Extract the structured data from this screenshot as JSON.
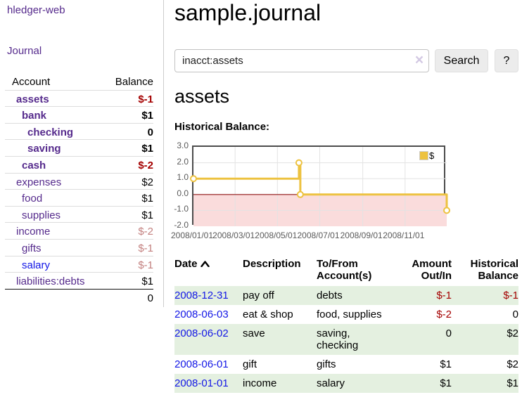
{
  "sidebar": {
    "app_title": "hledger-web",
    "journal_label": "Journal",
    "accounts_table": {
      "account_header": "Account",
      "balance_header": "Balance",
      "rows": [
        {
          "name": "assets",
          "balance": "$-1"
        },
        {
          "name": "bank",
          "balance": "$1"
        },
        {
          "name": "checking",
          "balance": "0"
        },
        {
          "name": "saving",
          "balance": "$1"
        },
        {
          "name": "cash",
          "balance": "$-2"
        },
        {
          "name": "expenses",
          "balance": "$2"
        },
        {
          "name": "food",
          "balance": "$1"
        },
        {
          "name": "supplies",
          "balance": "$1"
        },
        {
          "name": "income",
          "balance": "$-2"
        },
        {
          "name": "gifts",
          "balance": "$-1"
        },
        {
          "name": "salary",
          "balance": "$-1"
        },
        {
          "name": "liabilities:debts",
          "balance": "$1"
        }
      ],
      "total": "0"
    }
  },
  "main": {
    "page_title": "sample.journal",
    "search": {
      "value": "inacct:assets",
      "clear_icon": "×",
      "button_label": "Search",
      "help_label": "?"
    },
    "account_heading": "assets",
    "chart_title": "Historical Balance:"
  },
  "chart_data": {
    "type": "line",
    "step": true,
    "title": "Historical Balance",
    "series": [
      {
        "name": "$",
        "points": [
          {
            "date": "2008-01-01",
            "value": 1
          },
          {
            "date": "2008-06-01",
            "value": 2
          },
          {
            "date": "2008-06-03",
            "value": 0
          },
          {
            "date": "2008-12-31",
            "value": -1
          }
        ]
      }
    ],
    "xlim": [
      "2008-01-01",
      "2008-12-31"
    ],
    "ylim": [
      -2,
      3
    ],
    "x_ticks": [
      "2008/01/01",
      "2008/03/01",
      "2008/05/01",
      "2008/07/01",
      "2008/09/01",
      "2008/11/01"
    ],
    "y_ticks": [
      "3.0",
      "2.0",
      "1.0",
      "0.0",
      "-1.0",
      "-2.0"
    ],
    "legend": {
      "label": "$",
      "position": "top-right"
    },
    "grid": true,
    "negative_region_shaded": true,
    "zero_line": true
  },
  "register": {
    "headers": {
      "date": "Date",
      "description": "Description",
      "accounts": "To/From Account(s)",
      "amount": "Amount Out/In",
      "balance": "Historical Balance"
    },
    "rows": [
      {
        "date": "2008-12-31",
        "description": "pay off",
        "accounts": "debts",
        "amount": "$-1",
        "balance": "$-1"
      },
      {
        "date": "2008-06-03",
        "description": "eat & shop",
        "accounts": "food, supplies",
        "amount": "$-2",
        "balance": "0"
      },
      {
        "date": "2008-06-02",
        "description": "save",
        "accounts": "saving, checking",
        "amount": "0",
        "balance": "$2"
      },
      {
        "date": "2008-06-01",
        "description": "gift",
        "accounts": "gifts",
        "amount": "$1",
        "balance": "$2"
      },
      {
        "date": "2008-01-01",
        "description": "income",
        "accounts": "salary",
        "amount": "$1",
        "balance": "$1"
      }
    ]
  },
  "colors": {
    "link_purple": "#552a8c",
    "link_blue": "#1317e6",
    "negative_strong": "#a40000",
    "negative_faded": "#c3807f",
    "row_green": "#e4f0e0",
    "chart_line": "#edc240",
    "chart_marker_fill": "#ffffff",
    "chart_negative_region": "#fadcdc",
    "chart_zero_line": "#8f1414",
    "chart_grid": "#e3e3e3",
    "chart_border": "#4c4c4c",
    "axis_text": "#5a5a5a"
  }
}
